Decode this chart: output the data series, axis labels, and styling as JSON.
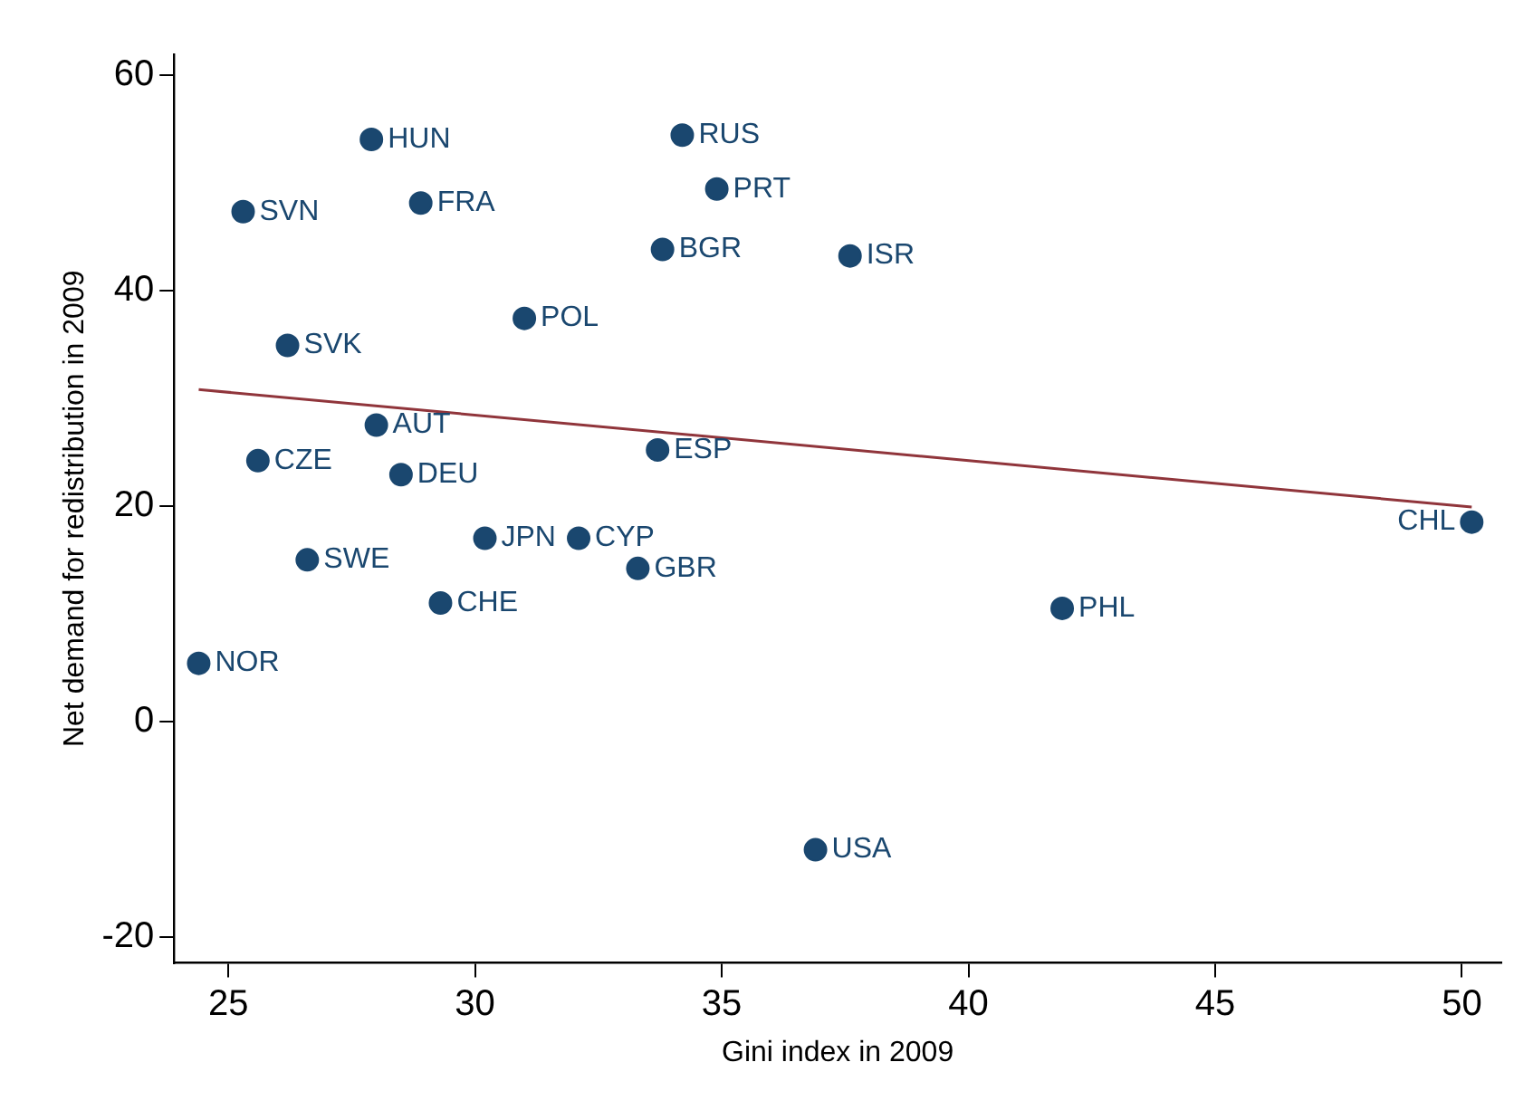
{
  "chart_data": {
    "type": "scatter",
    "xlabel": "Gini index in 2009",
    "ylabel": "Net demand for redistribution in 2009",
    "xlim": [
      23.9,
      50.8
    ],
    "xticks": [
      25,
      30,
      35,
      40,
      45,
      50
    ],
    "ylim": [
      -22.4,
      61.9
    ],
    "yticks": [
      -20,
      0,
      20,
      40,
      60
    ],
    "grid": false,
    "legend": false,
    "series": [
      {
        "marker": "circle",
        "color": "#1a476f",
        "x": [
          27.9,
          34.2,
          34.9,
          25.3,
          28.9,
          33.8,
          37.6,
          31.0,
          26.2,
          28.0,
          33.7,
          25.6,
          28.5,
          50.2,
          30.2,
          32.1,
          26.6,
          33.3,
          29.3,
          41.9,
          24.4,
          36.9
        ],
        "values": [
          54.0,
          54.4,
          49.4,
          47.3,
          48.1,
          43.8,
          43.2,
          37.4,
          34.9,
          27.5,
          25.2,
          24.2,
          22.9,
          18.5,
          17.0,
          17.0,
          15.0,
          14.2,
          11.0,
          10.5,
          5.4,
          -11.9
        ]
      },
      {
        "type": "line",
        "color": "#90353b",
        "x": [
          24.4,
          50.2
        ],
        "values": [
          30.8,
          19.9
        ]
      }
    ],
    "annotations": [
      {
        "text": "HUN",
        "x": 27.9,
        "y": 54.0
      },
      {
        "text": "RUS",
        "x": 34.2,
        "y": 54.4
      },
      {
        "text": "PRT",
        "x": 34.9,
        "y": 49.4
      },
      {
        "text": "SVN",
        "x": 25.3,
        "y": 47.3
      },
      {
        "text": "FRA",
        "x": 28.9,
        "y": 48.1
      },
      {
        "text": "BGR",
        "x": 33.8,
        "y": 43.8
      },
      {
        "text": "ISR",
        "x": 37.6,
        "y": 43.2
      },
      {
        "text": "POL",
        "x": 31.0,
        "y": 37.4
      },
      {
        "text": "SVK",
        "x": 26.2,
        "y": 34.9
      },
      {
        "text": "AUT",
        "x": 28.0,
        "y": 27.5
      },
      {
        "text": "ESP",
        "x": 33.7,
        "y": 25.2
      },
      {
        "text": "CZE",
        "x": 25.6,
        "y": 24.2
      },
      {
        "text": "DEU",
        "x": 28.5,
        "y": 22.9
      },
      {
        "text": "CHL",
        "x": 50.2,
        "y": 18.5
      },
      {
        "text": "JPN",
        "x": 30.2,
        "y": 17.0
      },
      {
        "text": "CYP",
        "x": 32.1,
        "y": 17.0
      },
      {
        "text": "SWE",
        "x": 26.6,
        "y": 15.0
      },
      {
        "text": "GBR",
        "x": 33.3,
        "y": 14.2
      },
      {
        "text": "CHE",
        "x": 29.3,
        "y": 11.0
      },
      {
        "text": "PHL",
        "x": 41.9,
        "y": 10.5
      },
      {
        "text": "NOR",
        "x": 24.4,
        "y": 5.4
      },
      {
        "text": "USA",
        "x": 36.9,
        "y": -11.9
      }
    ]
  }
}
